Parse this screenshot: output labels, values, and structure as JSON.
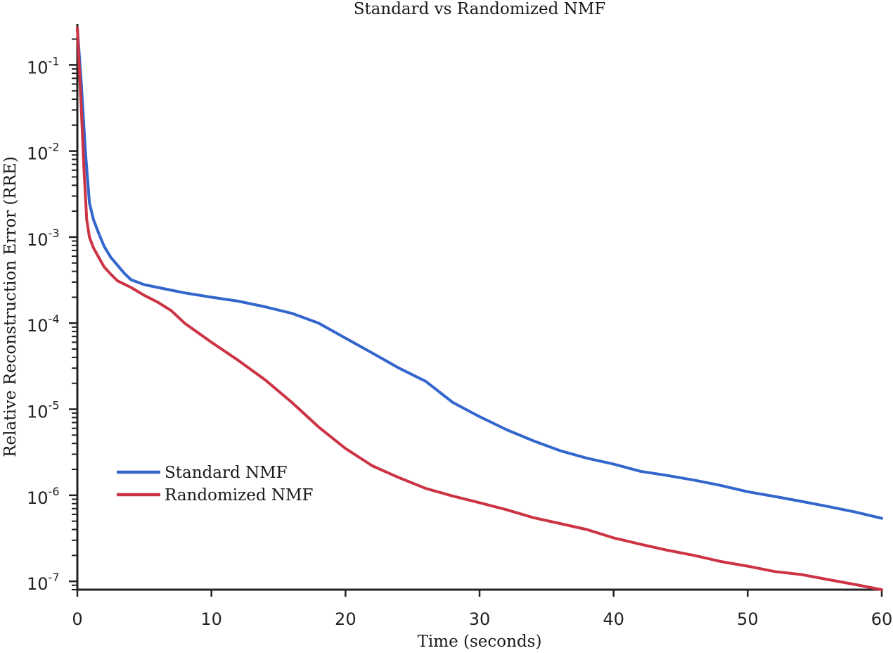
{
  "chart_data": {
    "type": "line",
    "title": "Standard vs Randomized NMF",
    "xlabel": "Time (seconds)",
    "ylabel": "Relative Reconstruction Error (RRE)",
    "xlim": [
      0,
      60
    ],
    "ylim": [
      8e-08,
      0.3
    ],
    "yscale": "log",
    "grid": false,
    "legend_position": "lower-left",
    "x_ticks": [
      0,
      10,
      20,
      30,
      40,
      50,
      60
    ],
    "y_tick_exponents": [
      "-1",
      "-2",
      "-3",
      "-4",
      "-5",
      "-6",
      "-7"
    ],
    "y_tick_base": "10",
    "series": [
      {
        "name": "Standard NMF",
        "color": "#3366cc",
        "x": [
          0,
          0.3,
          0.6,
          0.9,
          1.2,
          1.6,
          2.0,
          2.5,
          3.0,
          3.5,
          4.0,
          5.0,
          6.0,
          8.0,
          10.0,
          12.0,
          14.0,
          16.0,
          18.0,
          20.0,
          22.0,
          24.0,
          26.0,
          28.0,
          30.0,
          32.0,
          34.0,
          36.0,
          38.0,
          40.0,
          42.0,
          44.0,
          46.0,
          48.0,
          50.0,
          52.0,
          54.0,
          56.0,
          58.0,
          60.0
        ],
        "y": [
          0.27,
          0.06,
          0.01,
          0.0025,
          0.0016,
          0.0011,
          0.00078,
          0.00058,
          0.00047,
          0.00038,
          0.00032,
          0.00028,
          0.00026,
          0.000225,
          0.0002,
          0.00018,
          0.000155,
          0.00013,
          0.0001,
          6.7e-05,
          4.5e-05,
          3e-05,
          2.1e-05,
          1.2e-05,
          8.2e-06,
          5.8e-06,
          4.3e-06,
          3.3e-06,
          2.7e-06,
          2.3e-06,
          1.9e-06,
          1.7e-06,
          1.5e-06,
          1.3e-06,
          1.1e-06,
          9.7e-07,
          8.5e-07,
          7.4e-07,
          6.4e-07,
          5.4e-07
        ]
      },
      {
        "name": "Randomized NMF",
        "color": "#cc3344",
        "x": [
          0,
          0.3,
          0.5,
          0.7,
          0.9,
          1.2,
          1.6,
          2.0,
          2.5,
          3.0,
          4.0,
          5.0,
          6.0,
          7.0,
          8.0,
          10.0,
          12.0,
          14.0,
          16.0,
          18.0,
          20.0,
          22.0,
          24.0,
          26.0,
          28.0,
          30.0,
          32.0,
          34.0,
          36.0,
          38.0,
          40.0,
          42.0,
          44.0,
          46.0,
          48.0,
          50.0,
          52.0,
          54.0,
          56.0,
          58.0,
          60.0
        ],
        "y": [
          0.27,
          0.03,
          0.006,
          0.0016,
          0.001,
          0.00075,
          0.00058,
          0.00045,
          0.00037,
          0.00031,
          0.00026,
          0.00021,
          0.000175,
          0.00014,
          0.0001,
          6e-05,
          3.7e-05,
          2.2e-05,
          1.2e-05,
          6.2e-06,
          3.5e-06,
          2.2e-06,
          1.6e-06,
          1.2e-06,
          9.8e-07,
          8.2e-07,
          6.8e-07,
          5.5e-07,
          4.7e-07,
          4e-07,
          3.2e-07,
          2.7e-07,
          2.3e-07,
          2e-07,
          1.7e-07,
          1.5e-07,
          1.3e-07,
          1.2e-07,
          1.05e-07,
          9.2e-08,
          8e-08
        ]
      }
    ]
  }
}
